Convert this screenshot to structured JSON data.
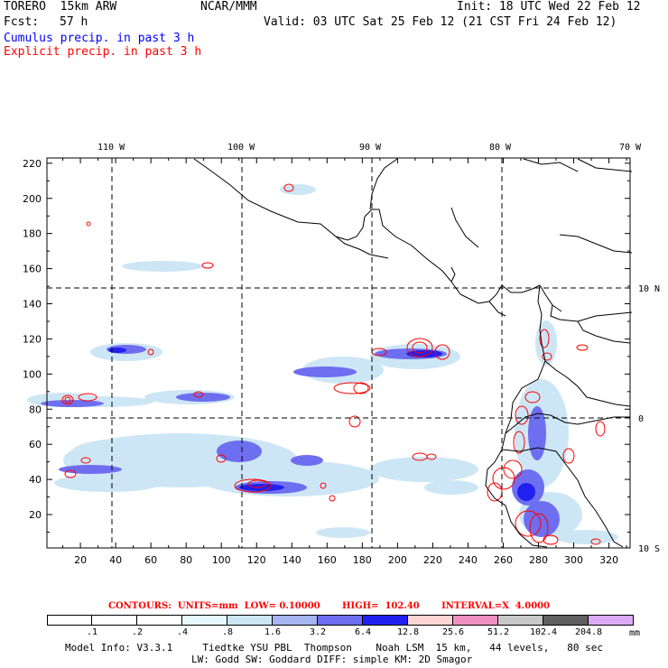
{
  "header": {
    "model": "TORERO  15km ARW",
    "org": "NCAR/MMM",
    "init": "Init: 18 UTC Wed 22 Feb 12",
    "fcst_label": "Fcst:",
    "fcst_value": "57 h",
    "valid": "Valid: 03 UTC Sat 25 Feb 12 (21 CST Fri 24 Feb 12)",
    "line_blue": "Cumulus precip. in past 3 h",
    "line_red": "Explicit precip. in past 3 h"
  },
  "map": {
    "lon_labels": [
      "110 W",
      "100 W",
      "90 W",
      "80 W",
      "70 W"
    ],
    "lat_labels": [
      "10 N",
      "0",
      "10 S"
    ],
    "x_ticks": [
      "20",
      "40",
      "60",
      "80",
      "100",
      "120",
      "140",
      "160",
      "180",
      "200",
      "220",
      "240",
      "260",
      "280",
      "300",
      "320"
    ],
    "y_ticks": [
      "20",
      "40",
      "60",
      "80",
      "100",
      "120",
      "140",
      "160",
      "180",
      "200",
      "220"
    ]
  },
  "contours_line": "CONTOURS:  UNITS=mm  LOW= 0.10000       HIGH=  102.40       INTERVAL=X  4.0000",
  "colorbar": {
    "labels": [
      ".1",
      ".2",
      ".4",
      ".8",
      "1.6",
      "3.2",
      "6.4",
      "12.8",
      "25.6",
      "51.2",
      "102.4",
      "204.8"
    ],
    "unit": "mm",
    "colors": [
      "#ffffff",
      "#ffffff",
      "#ffffff",
      "#e6f9fc",
      "#cde6f5",
      "#a6b4f0",
      "#6e6ef0",
      "#2020f0",
      "#1010e0",
      "#fcd5d5",
      "#f090c0",
      "#c8c8c8",
      "#606060",
      "#dcaaf5"
    ]
  },
  "footer": {
    "line1": "Model Info: V3.3.1     Tiedtke YSU PBL  Thompson    Noah LSM  15 km,   44 levels,   80 sec",
    "line2": "LW: Godd SW: Goddard DIFF: simple KM: 2D Smagor"
  }
}
